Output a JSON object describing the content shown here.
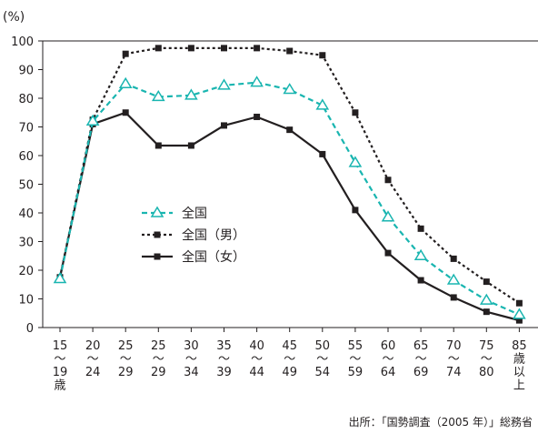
{
  "chart_data": {
    "type": "line",
    "ylabel": "(%)",
    "ylim": [
      0,
      100
    ],
    "yticks": [
      0,
      10,
      20,
      30,
      40,
      50,
      60,
      70,
      80,
      90,
      100
    ],
    "grid": false,
    "legend_position": "center-left",
    "categories": [
      [
        "15",
        "〜",
        "19",
        "歳"
      ],
      [
        "20",
        "〜",
        "24"
      ],
      [
        "25",
        "〜",
        "29"
      ],
      [
        "25",
        "〜",
        "29"
      ],
      [
        "30",
        "〜",
        "34"
      ],
      [
        "35",
        "〜",
        "39"
      ],
      [
        "40",
        "〜",
        "44"
      ],
      [
        "45",
        "〜",
        "49"
      ],
      [
        "50",
        "〜",
        "54"
      ],
      [
        "55",
        "〜",
        "59"
      ],
      [
        "60",
        "〜",
        "64"
      ],
      [
        "65",
        "〜",
        "69"
      ],
      [
        "70",
        "〜",
        "74"
      ],
      [
        "75",
        "〜",
        "80"
      ],
      [
        "85",
        "歳",
        "以",
        "上"
      ]
    ],
    "series": [
      {
        "name": "全国",
        "color": "#19b5b0",
        "line_style": "dashed",
        "marker": "triangle-open",
        "values": [
          17,
          72,
          85,
          80.5,
          81,
          84.5,
          85.5,
          83,
          77.5,
          57.5,
          38.5,
          25,
          16.5,
          9.5,
          4.5
        ]
      },
      {
        "name": "全国（男）",
        "color": "#231f20",
        "line_style": "dotted",
        "marker": "square-filled",
        "values": [
          17.5,
          72.5,
          95.5,
          97.5,
          97.5,
          97.5,
          97.5,
          96.5,
          95,
          75,
          51.5,
          34.5,
          24,
          16,
          8.5
        ]
      },
      {
        "name": "全国（女）",
        "color": "#231f20",
        "line_style": "solid",
        "marker": "square-filled",
        "values": [
          17.5,
          71,
          75,
          63.5,
          63.5,
          70.5,
          73.5,
          69,
          60.5,
          41,
          26,
          16.5,
          10.5,
          5.5,
          2.5
        ]
      }
    ]
  },
  "source_note": "出所：「国勢調査（2005 年）」総務省"
}
